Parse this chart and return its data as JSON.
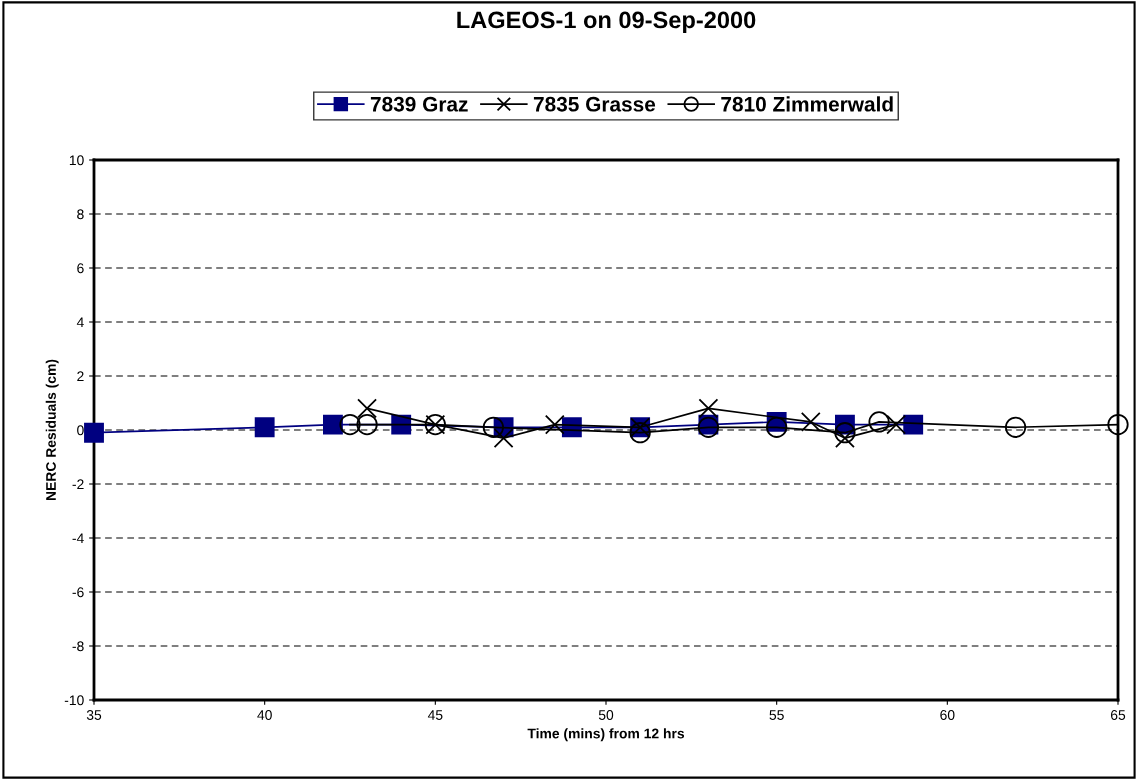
{
  "chart_data": {
    "type": "line",
    "title": "LAGEOS-1 on 09-Sep-2000",
    "xlabel": "Time (mins) from 12 hrs",
    "ylabel": "NERC Residuals (cm)",
    "xlim": [
      35,
      65
    ],
    "xticks": [
      35,
      40,
      45,
      50,
      55,
      60,
      65
    ],
    "ylim": [
      -10,
      10
    ],
    "yticks": [
      -10,
      -8,
      -6,
      -4,
      -2,
      0,
      2,
      4,
      6,
      8,
      10
    ],
    "grid": "y",
    "legend": "top",
    "series": [
      {
        "name": "7839 Graz",
        "color": "#000080",
        "marker": "square",
        "x": [
          35,
          40,
          42,
          44,
          47,
          49,
          51,
          53,
          55,
          57,
          59
        ],
        "values": [
          -0.1,
          0.1,
          0.2,
          0.2,
          0.1,
          0.1,
          0.1,
          0.2,
          0.3,
          0.2,
          0.2
        ]
      },
      {
        "name": "7835 Grasse",
        "color": "#000000",
        "marker": "cross",
        "x": [
          43,
          45,
          47,
          48.5,
          51,
          53,
          56,
          57,
          58.5
        ],
        "values": [
          0.8,
          0.2,
          -0.3,
          0.2,
          0.1,
          0.8,
          0.3,
          -0.3,
          0.2
        ]
      },
      {
        "name": "7810 Zimmerwald",
        "color": "#000000",
        "marker": "circle",
        "x": [
          42.5,
          43,
          45,
          46.7,
          51,
          53,
          55,
          57,
          58,
          62,
          65
        ],
        "values": [
          0.2,
          0.2,
          0.2,
          0.1,
          -0.1,
          0.1,
          0.1,
          -0.1,
          0.3,
          0.1,
          0.2
        ]
      }
    ]
  }
}
